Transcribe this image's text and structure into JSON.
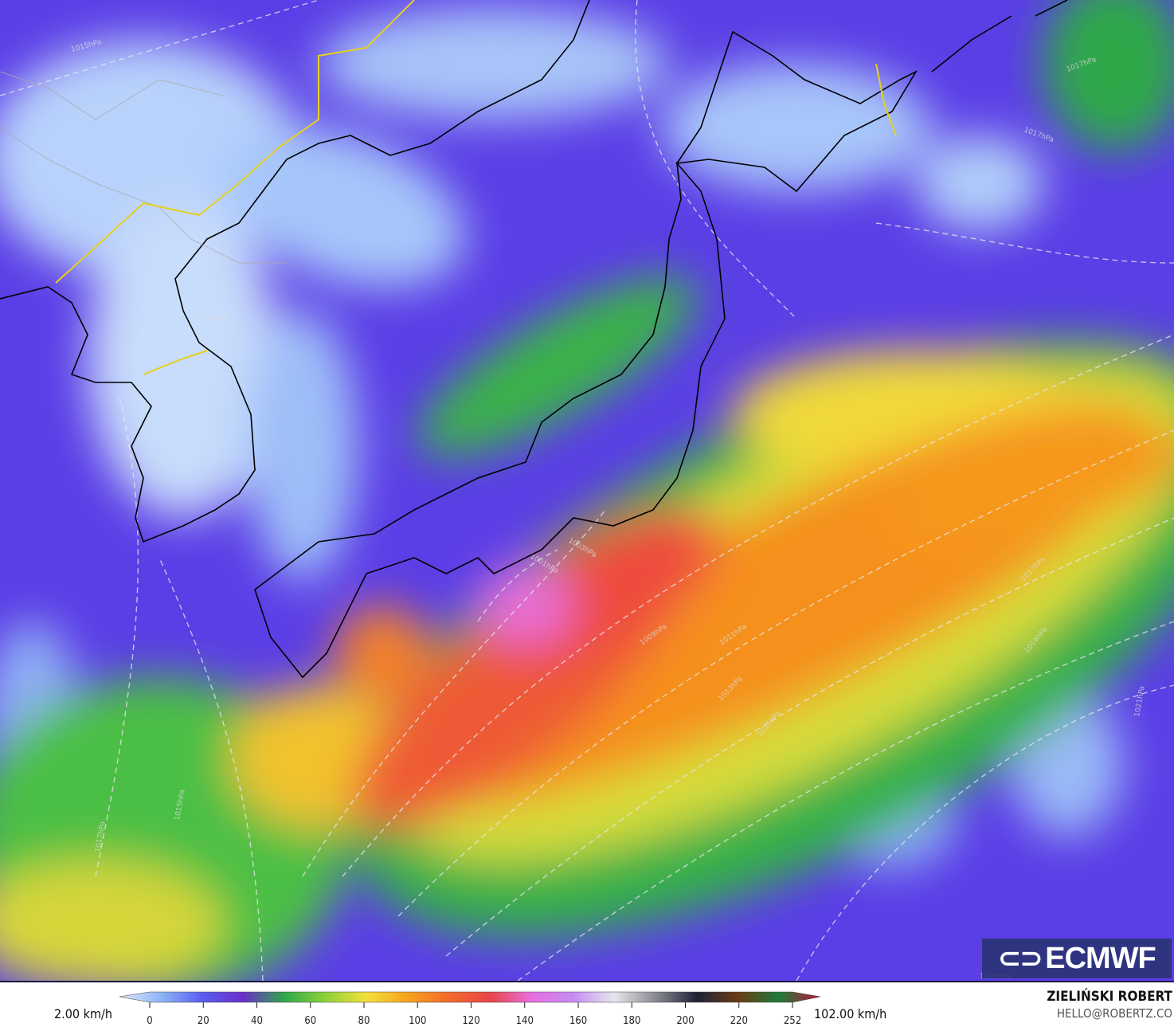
{
  "map": {
    "type": "wind-speed field map",
    "region": "Japan and Korea",
    "isobar_labels": [
      "1015hPa",
      "1017hPa",
      "1014hPa",
      "1003hPa",
      "1001hPa",
      "1009hPa",
      "1011hPa",
      "1013hPa",
      "1015hPa",
      "1017hPa",
      "1019hPa",
      "1017hPa",
      "1019hPa",
      "1021hPa",
      "1017hPa",
      "1015hPa"
    ],
    "logo_text": "ECMWF"
  },
  "colorbar": {
    "min_label": "2.00 km/h",
    "max_label": "102.00 km/h",
    "ticks": [
      "0",
      "20",
      "40",
      "60",
      "80",
      "100",
      "120",
      "140",
      "160",
      "180",
      "200",
      "220",
      "252"
    ],
    "colors": [
      "#dbe9fb",
      "#8fb6f5",
      "#5a5ef0",
      "#6a2fc8",
      "#2ea84a",
      "#8fd13a",
      "#f3e03a",
      "#f6a21e",
      "#f2692c",
      "#e8444a",
      "#e86fe0",
      "#c48cf2",
      "#e6e6ec",
      "#8a8a92",
      "#1c2236",
      "#6b3a14",
      "#1f7a3a",
      "#c0143a"
    ]
  },
  "credits": {
    "author": "ZIELIŃSKI ROBERT",
    "email": "HELLO@ROBERTZ.CO"
  }
}
